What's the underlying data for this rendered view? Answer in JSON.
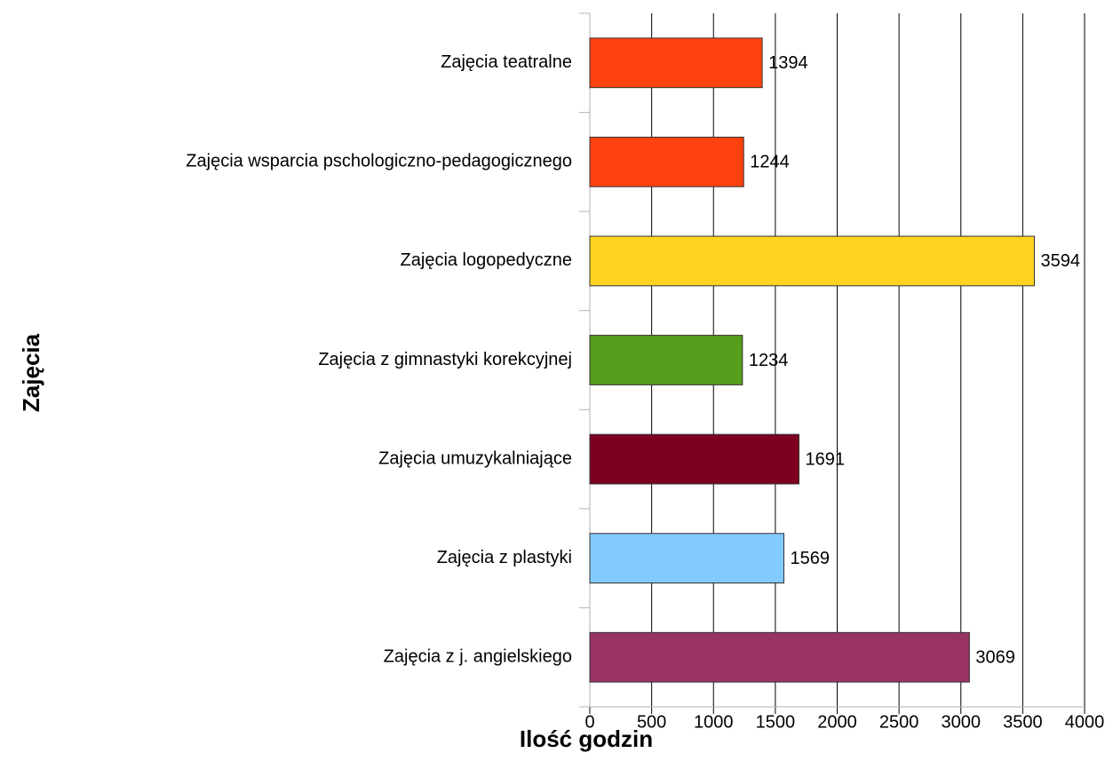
{
  "chart_data": {
    "type": "barh",
    "categories": [
      "Zajęcia teatralne",
      "Zajęcia wsparcia pschologiczno-pedagogicznego",
      "Zajęcia logopedyczne",
      "Zajęcia z gimnastyki korekcyjnej",
      "Zajęcia umuzykalniające",
      "Zajęcia z plastyki",
      "Zajęcia z j. angielskiego"
    ],
    "values": [
      1394,
      1244,
      3594,
      1234,
      1691,
      1569,
      3069
    ],
    "colors": [
      "#ff420e",
      "#ff420e",
      "#ffd320",
      "#579d1c",
      "#7e0021",
      "#83caff",
      "#993366"
    ],
    "xlabel": "Ilość godzin",
    "ylabel": "Zajęcia",
    "xlim": [
      0,
      4000
    ],
    "xticks": [
      0,
      500,
      1000,
      1500,
      2000,
      2500,
      3000,
      3500,
      4000
    ],
    "grid": true
  }
}
